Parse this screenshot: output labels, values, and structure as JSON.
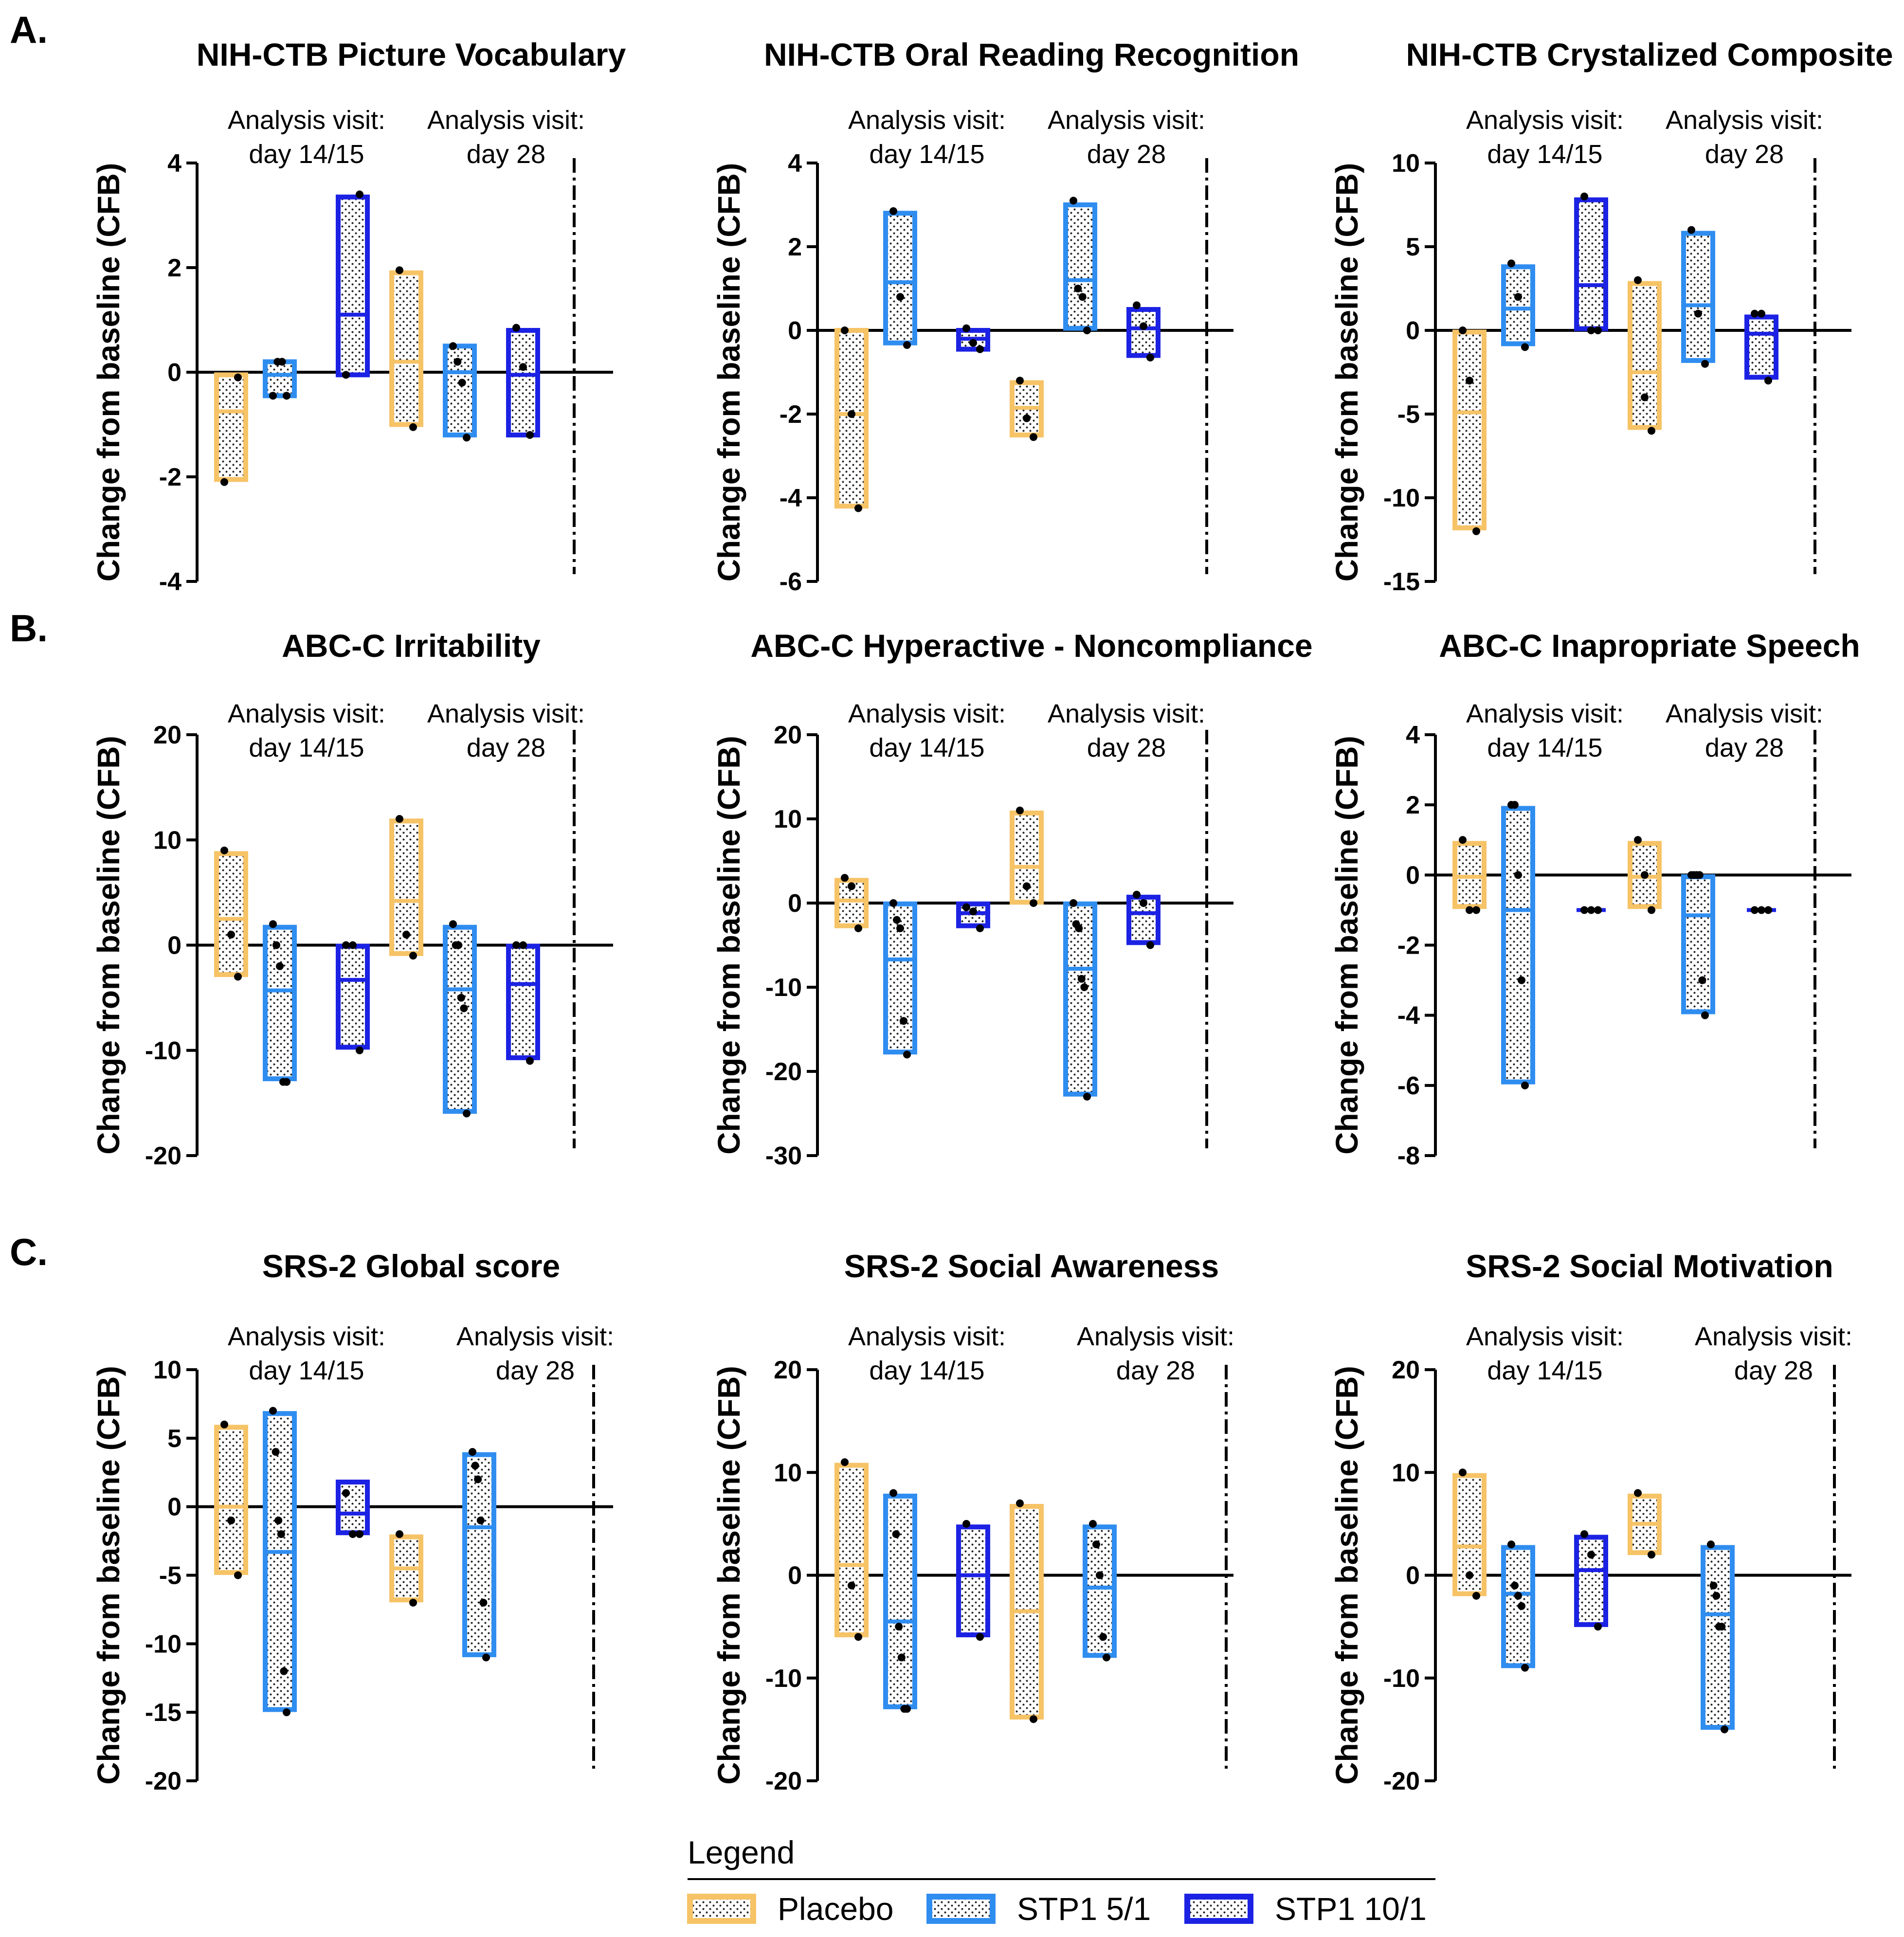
{
  "colors": {
    "Placebo": "#F6C366",
    "STP1 5/1": "#2F8DF0",
    "STP1 10/1": "#1C22E3",
    "axis": "#000000",
    "point": "#000000"
  },
  "legend": {
    "title": "Legend",
    "items": [
      "Placebo",
      "STP1 5/1",
      "STP1 10/1"
    ]
  },
  "sections": [
    "A.",
    "B.",
    "C."
  ],
  "chart_data": [
    {
      "type": "floating-bar",
      "section": "A.",
      "title": "NIH-CTB Picture Vocabulary",
      "ylabel": "Change from baseline (CFB)",
      "ylim": [
        -4,
        4
      ],
      "ticks": [
        4,
        2,
        0,
        -2,
        -4
      ],
      "visit_labels": [
        [
          "Analysis visit:",
          "day 14/15"
        ],
        [
          "Analysis visit:",
          "day 28"
        ]
      ],
      "series": [
        {
          "visit": "day 14/15",
          "group": "Placebo",
          "min": -2.05,
          "max": -0.05,
          "mean": -0.75,
          "points": [
            -2.1,
            -0.1
          ]
        },
        {
          "visit": "day 14/15",
          "group": "STP1 5/1",
          "min": -0.45,
          "max": 0.2,
          "mean": -0.05,
          "points": [
            -0.45,
            0.2,
            0.2,
            -0.45
          ]
        },
        {
          "visit": "day 14/15",
          "group": "STP1 10/1",
          "min": -0.05,
          "max": 3.35,
          "mean": 1.1,
          "points": [
            -0.05,
            3.4
          ]
        },
        {
          "visit": "day 28",
          "group": "Placebo",
          "min": -1.0,
          "max": 1.9,
          "mean": 0.2,
          "points": [
            1.95,
            -1.05
          ]
        },
        {
          "visit": "day 28",
          "group": "STP1 5/1",
          "min": -1.2,
          "max": 0.5,
          "mean": 0.0,
          "points": [
            0.5,
            0.2,
            -0.2,
            -1.25
          ]
        },
        {
          "visit": "day 28",
          "group": "STP1 10/1",
          "min": -1.2,
          "max": 0.8,
          "mean": -0.05,
          "points": [
            0.85,
            0.1,
            -1.2
          ]
        }
      ]
    },
    {
      "type": "floating-bar",
      "section": "A.",
      "title": "NIH-CTB Oral Reading Recognition",
      "ylabel": "Change from baseline (CFB)",
      "ylim": [
        -6,
        4
      ],
      "ticks": [
        4,
        2,
        0,
        -2,
        -4,
        -6
      ],
      "visit_labels": [
        [
          "Analysis visit:",
          "day 14/15"
        ],
        [
          "Analysis visit:",
          "day 28"
        ]
      ],
      "series": [
        {
          "visit": "day 14/15",
          "group": "Placebo",
          "min": -4.2,
          "max": 0.0,
          "mean": -2.0,
          "points": [
            0.0,
            -2.0,
            -4.25
          ]
        },
        {
          "visit": "day 14/15",
          "group": "STP1 5/1",
          "min": -0.3,
          "max": 2.8,
          "mean": 1.15,
          "points": [
            2.85,
            0.8,
            -0.35
          ]
        },
        {
          "visit": "day 14/15",
          "group": "STP1 10/1",
          "min": -0.45,
          "max": 0.0,
          "mean": -0.2,
          "points": [
            0.05,
            -0.3,
            -0.45
          ]
        },
        {
          "visit": "day 28",
          "group": "Placebo",
          "min": -2.5,
          "max": -1.25,
          "mean": -1.85,
          "points": [
            -1.2,
            -2.1,
            -2.55
          ]
        },
        {
          "visit": "day 28",
          "group": "STP1 5/1",
          "min": 0.05,
          "max": 3.0,
          "mean": 1.2,
          "points": [
            3.1,
            1.0,
            0.8,
            0.0
          ]
        },
        {
          "visit": "day 28",
          "group": "STP1 10/1",
          "min": -0.6,
          "max": 0.5,
          "mean": 0.05,
          "points": [
            0.6,
            0.1,
            -0.65
          ]
        }
      ]
    },
    {
      "type": "floating-bar",
      "section": "A.",
      "title": "NIH-CTB Crystalized Composite",
      "ylabel": "Change from baseline (CFB)",
      "ylim": [
        -15,
        10
      ],
      "ticks": [
        10,
        5,
        0,
        -5,
        -10,
        -15
      ],
      "visit_labels": [
        [
          "Analysis visit:",
          "day 14/15"
        ],
        [
          "Analysis visit:",
          "day 28"
        ]
      ],
      "series": [
        {
          "visit": "day 14/15",
          "group": "Placebo",
          "min": -11.8,
          "max": -0.1,
          "mean": -4.9,
          "points": [
            0.0,
            -3.0,
            -12.0
          ]
        },
        {
          "visit": "day 14/15",
          "group": "STP1 5/1",
          "min": -0.8,
          "max": 3.8,
          "mean": 1.3,
          "points": [
            4.0,
            2.0,
            -1.0
          ]
        },
        {
          "visit": "day 14/15",
          "group": "STP1 10/1",
          "min": 0.1,
          "max": 7.8,
          "mean": 2.7,
          "points": [
            8.0,
            0.0,
            0.0
          ]
        },
        {
          "visit": "day 28",
          "group": "Placebo",
          "min": -5.8,
          "max": 2.8,
          "mean": -2.5,
          "points": [
            3.0,
            -4.0,
            -6.0
          ]
        },
        {
          "visit": "day 28",
          "group": "STP1 5/1",
          "min": -1.8,
          "max": 5.8,
          "mean": 1.5,
          "points": [
            6.0,
            1.0,
            -2.0
          ]
        },
        {
          "visit": "day 28",
          "group": "STP1 10/1",
          "min": -2.8,
          "max": 0.8,
          "mean": -0.2,
          "points": [
            1.0,
            1.0,
            -3.0
          ]
        }
      ]
    },
    {
      "type": "floating-bar",
      "section": "B.",
      "title": "ABC-C Irritability",
      "ylabel": "Change from baseline (CFB)",
      "ylim": [
        -20,
        20
      ],
      "ticks": [
        20,
        10,
        0,
        -10,
        -20
      ],
      "visit_labels": [
        [
          "Analysis visit:",
          "day 14/15"
        ],
        [
          "Analysis visit:",
          "day 28"
        ]
      ],
      "series": [
        {
          "visit": "day 14/15",
          "group": "Placebo",
          "min": -2.8,
          "max": 8.7,
          "mean": 2.5,
          "points": [
            9.0,
            1.0,
            -3.0
          ]
        },
        {
          "visit": "day 14/15",
          "group": "STP1 5/1",
          "min": -12.7,
          "max": 1.7,
          "mean": -4.3,
          "points": [
            2.0,
            0.0,
            -2.0,
            -13.0,
            -13.0
          ]
        },
        {
          "visit": "day 14/15",
          "group": "STP1 10/1",
          "min": -9.7,
          "max": -0.1,
          "mean": -3.3,
          "points": [
            0.0,
            0.0,
            -10.0
          ]
        },
        {
          "visit": "day 28",
          "group": "Placebo",
          "min": -0.8,
          "max": 11.8,
          "mean": 4.2,
          "points": [
            12.0,
            1.0,
            -1.0
          ]
        },
        {
          "visit": "day 28",
          "group": "STP1 5/1",
          "min": -15.8,
          "max": 1.7,
          "mean": -4.2,
          "points": [
            2.0,
            0.0,
            0.0,
            -5.0,
            -6.0,
            -16.0
          ]
        },
        {
          "visit": "day 28",
          "group": "STP1 10/1",
          "min": -10.7,
          "max": -0.1,
          "mean": -3.7,
          "points": [
            0.0,
            0.0,
            -11.0
          ]
        }
      ]
    },
    {
      "type": "floating-bar",
      "section": "B.",
      "title": "ABC-C Hyperactive - Noncompliance",
      "ylabel": "Change from baseline (CFB)",
      "ylim": [
        -30,
        20
      ],
      "ticks": [
        20,
        10,
        0,
        -10,
        -20,
        -30
      ],
      "visit_labels": [
        [
          "Analysis visit:",
          "day 14/15"
        ],
        [
          "Analysis visit:",
          "day 28"
        ]
      ],
      "series": [
        {
          "visit": "day 14/15",
          "group": "Placebo",
          "min": -2.7,
          "max": 2.7,
          "mean": 0.3,
          "points": [
            3.0,
            2.0,
            -3.0
          ]
        },
        {
          "visit": "day 14/15",
          "group": "STP1 5/1",
          "min": -17.7,
          "max": -0.1,
          "mean": -6.7,
          "points": [
            0.0,
            -2.0,
            -3.0,
            -14.0,
            -18.0
          ]
        },
        {
          "visit": "day 14/15",
          "group": "STP1 10/1",
          "min": -2.7,
          "max": -0.1,
          "mean": -1.2,
          "points": [
            -0.5,
            -1.0,
            -3.0
          ]
        },
        {
          "visit": "day 28",
          "group": "Placebo",
          "min": 0.1,
          "max": 10.7,
          "mean": 4.3,
          "points": [
            11.0,
            2.0,
            0.0
          ]
        },
        {
          "visit": "day 28",
          "group": "STP1 5/1",
          "min": -22.7,
          "max": -0.1,
          "mean": -7.8,
          "points": [
            0.0,
            -2.5,
            -3.0,
            -9.0,
            -10.0,
            -23.0
          ]
        },
        {
          "visit": "day 28",
          "group": "STP1 10/1",
          "min": -4.7,
          "max": 0.7,
          "mean": -1.2,
          "points": [
            1.0,
            0.0,
            -5.0
          ]
        }
      ]
    },
    {
      "type": "floating-bar",
      "section": "B.",
      "title": "ABC-C Inapropriate Speech",
      "ylabel": "Change from baseline (CFB)",
      "ylim": [
        -8,
        4
      ],
      "ticks": [
        4,
        2,
        0,
        -2,
        -4,
        -6,
        -8
      ],
      "visit_labels": [
        [
          "Analysis visit:",
          "day 14/15"
        ],
        [
          "Analysis visit:",
          "day 28"
        ]
      ],
      "series": [
        {
          "visit": "day 14/15",
          "group": "Placebo",
          "min": -0.9,
          "max": 0.9,
          "mean": -0.05,
          "points": [
            1.0,
            -1.0,
            -1.0
          ]
        },
        {
          "visit": "day 14/15",
          "group": "STP1 5/1",
          "min": -5.9,
          "max": 1.9,
          "mean": -1.0,
          "points": [
            2.0,
            2.0,
            0.0,
            -3.0,
            -6.0
          ]
        },
        {
          "visit": "day 14/15",
          "group": "STP1 10/1",
          "min": -1.0,
          "max": -1.0,
          "mean": -1.0,
          "points": [
            -1.0,
            -1.0,
            -1.0
          ]
        },
        {
          "visit": "day 28",
          "group": "Placebo",
          "min": -0.9,
          "max": 0.9,
          "mean": -0.05,
          "points": [
            1.0,
            0.0,
            -1.0
          ]
        },
        {
          "visit": "day 28",
          "group": "STP1 5/1",
          "min": -3.9,
          "max": -0.05,
          "mean": -1.15,
          "points": [
            0.0,
            0.0,
            0.0,
            0.0,
            -3.0,
            -4.0
          ]
        },
        {
          "visit": "day 28",
          "group": "STP1 10/1",
          "min": -1.0,
          "max": -1.0,
          "mean": -1.0,
          "points": [
            -1.0,
            -1.0,
            -1.0
          ]
        }
      ]
    },
    {
      "type": "floating-bar",
      "section": "C.",
      "title": "SRS-2 Global score",
      "ylabel": "Change from baseline (CFB)",
      "ylim": [
        -20,
        10
      ],
      "ticks": [
        10,
        5,
        0,
        -5,
        -10,
        -15,
        -20
      ],
      "visit_labels": [
        [
          "Analysis visit:",
          "day 14/15"
        ],
        [
          "Analysis visit:",
          "day 28"
        ]
      ],
      "series": [
        {
          "visit": "day 14/15",
          "group": "Placebo",
          "min": -4.8,
          "max": 5.8,
          "mean": 0.0,
          "points": [
            6.0,
            -1.0,
            -5.0
          ]
        },
        {
          "visit": "day 14/15",
          "group": "STP1 5/1",
          "min": -14.8,
          "max": 6.8,
          "mean": -3.3,
          "points": [
            7.0,
            4.0,
            -1.0,
            -2.0,
            -12.0,
            -15.0
          ]
        },
        {
          "visit": "day 14/15",
          "group": "STP1 10/1",
          "min": -1.9,
          "max": 1.8,
          "mean": -0.5,
          "points": [
            1.0,
            -2.0,
            -2.0
          ]
        },
        {
          "visit": "day 28",
          "group": "Placebo",
          "min": -6.8,
          "max": -2.2,
          "mean": -4.5,
          "points": [
            -2.0,
            -7.0
          ]
        },
        {
          "visit": "day 28",
          "group": "STP1 5/1",
          "min": -10.8,
          "max": 3.8,
          "mean": -1.5,
          "points": [
            4.0,
            3.0,
            2.0,
            -1.0,
            -7.0,
            -11.0
          ]
        }
      ]
    },
    {
      "type": "floating-bar",
      "section": "C.",
      "title": "SRS-2 Social Awareness",
      "ylabel": "Change from baseline (CFB)",
      "ylim": [
        -20,
        20
      ],
      "ticks": [
        20,
        10,
        0,
        -10,
        -20
      ],
      "visit_labels": [
        [
          "Analysis visit:",
          "day 14/15"
        ],
        [
          "Analysis visit:",
          "day 28"
        ]
      ],
      "series": [
        {
          "visit": "day 14/15",
          "group": "Placebo",
          "min": -5.8,
          "max": 10.7,
          "mean": 1.0,
          "points": [
            11.0,
            -1.0,
            -6.0
          ]
        },
        {
          "visit": "day 14/15",
          "group": "STP1 5/1",
          "min": -12.8,
          "max": 7.7,
          "mean": -4.5,
          "points": [
            8.0,
            4.0,
            -5.0,
            -8.0,
            -13.0,
            -13.0
          ]
        },
        {
          "visit": "day 14/15",
          "group": "STP1 10/1",
          "min": -5.8,
          "max": 4.7,
          "mean": 0.0,
          "points": [
            5.0,
            -6.0
          ]
        },
        {
          "visit": "day 28",
          "group": "Placebo",
          "min": -13.8,
          "max": 6.7,
          "mean": -3.5,
          "points": [
            7.0,
            -14.0
          ]
        },
        {
          "visit": "day 28",
          "group": "STP1 5/1",
          "min": -7.8,
          "max": 4.7,
          "mean": -1.2,
          "points": [
            5.0,
            3.0,
            0.0,
            -6.0,
            -8.0
          ]
        }
      ]
    },
    {
      "type": "floating-bar",
      "section": "C.",
      "title": "SRS-2 Social Motivation",
      "ylabel": "Change from baseline (CFB)",
      "ylim": [
        -20,
        20
      ],
      "ticks": [
        20,
        10,
        0,
        -10,
        -20
      ],
      "visit_labels": [
        [
          "Analysis visit:",
          "day 14/15"
        ],
        [
          "Analysis visit:",
          "day 28"
        ]
      ],
      "series": [
        {
          "visit": "day 14/15",
          "group": "Placebo",
          "min": -1.8,
          "max": 9.7,
          "mean": 2.8,
          "points": [
            10.0,
            0.0,
            -2.0
          ]
        },
        {
          "visit": "day 14/15",
          "group": "STP1 5/1",
          "min": -8.8,
          "max": 2.7,
          "mean": -1.8,
          "points": [
            3.0,
            -1.0,
            -2.0,
            -3.0,
            -9.0
          ]
        },
        {
          "visit": "day 14/15",
          "group": "STP1 10/1",
          "min": -4.8,
          "max": 3.7,
          "mean": 0.5,
          "points": [
            4.0,
            2.0,
            -5.0
          ]
        },
        {
          "visit": "day 28",
          "group": "Placebo",
          "min": 2.2,
          "max": 7.7,
          "mean": 5.0,
          "points": [
            8.0,
            2.0
          ]
        },
        {
          "visit": "day 28",
          "group": "STP1 5/1",
          "min": -14.8,
          "max": 2.7,
          "mean": -3.8,
          "points": [
            3.0,
            -1.0,
            -2.0,
            -5.0,
            -5.0,
            -15.0
          ]
        }
      ]
    }
  ]
}
